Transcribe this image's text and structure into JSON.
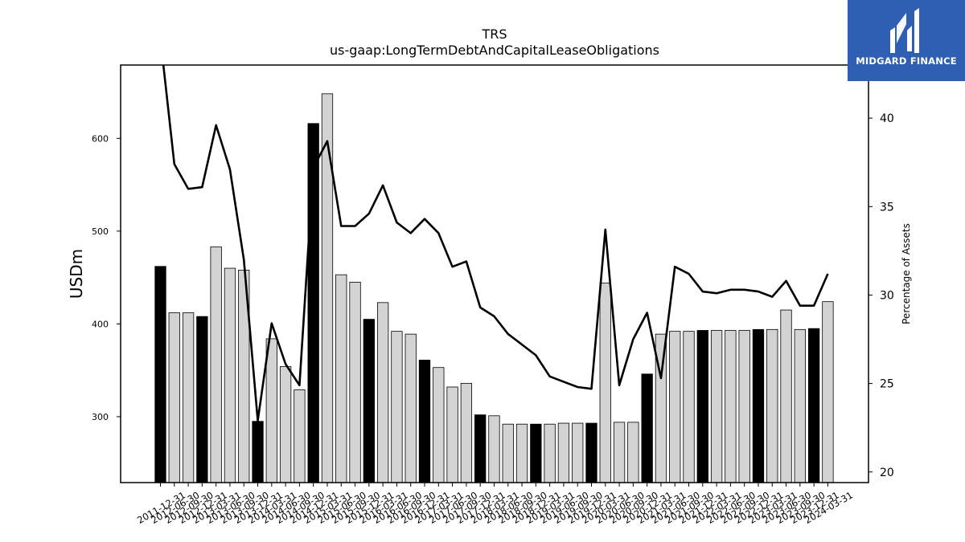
{
  "chart_data": {
    "type": "bar",
    "title": "TRS",
    "subtitle": "us-gaap:LongTermDebtAndCapitalLeaseObligations",
    "ylabel": "USDm",
    "y2label": "Percentage of Assets",
    "ylim": [
      229,
      679
    ],
    "y2lim": [
      19.4,
      43
    ],
    "yticks": [
      300,
      400,
      500,
      600
    ],
    "y2ticks": [
      20,
      25,
      30,
      35,
      40
    ],
    "grid": false,
    "categories": [
      "2011-12-31",
      "2012-06-30",
      "2012-09-30",
      "2012-12-31",
      "2013-03-31",
      "2013-06-30",
      "2013-09-30",
      "2013-12-31",
      "2014-03-31",
      "2014-06-30",
      "2014-09-30",
      "2014-12-31",
      "2015-03-31",
      "2015-06-30",
      "2015-09-30",
      "2015-12-31",
      "2016-03-31",
      "2016-06-30",
      "2016-09-30",
      "2016-12-31",
      "2017-03-31",
      "2017-06-30",
      "2017-09-30",
      "2017-12-31",
      "2018-03-31",
      "2018-06-30",
      "2018-09-30",
      "2018-12-31",
      "2019-03-31",
      "2019-06-30",
      "2019-09-30",
      "2019-12-31",
      "2020-03-31",
      "2020-06-30",
      "2020-09-30",
      "2020-12-31",
      "2021-03-31",
      "2021-06-30",
      "2021-09-30",
      "2021-12-31",
      "2022-03-31",
      "2022-06-30",
      "2022-09-30",
      "2022-12-31",
      "2023-03-31",
      "2023-06-30",
      "2023-09-30",
      "2023-12-31",
      "2024-03-31"
    ],
    "series": [
      {
        "type": "bar",
        "values": [
          462,
          412,
          412,
          408,
          483,
          460,
          458,
          295,
          384,
          354,
          329,
          616,
          648,
          453,
          445,
          405,
          423,
          392,
          389,
          361,
          353,
          332,
          336,
          302,
          301,
          292,
          292,
          292,
          292,
          293,
          293,
          293,
          444,
          294,
          294,
          346,
          389,
          392,
          392,
          393,
          393,
          393,
          393,
          394,
          394,
          415,
          394,
          395,
          424
        ],
        "fourth_quarter_color": "#000000",
        "other_color": "#d3d3d3"
      },
      {
        "type": "line",
        "axis": "right",
        "color": "#000000",
        "values": [
          44.5,
          37.4,
          36.0,
          36.1,
          39.6,
          37.1,
          32.0,
          22.9,
          28.4,
          26.1,
          24.9,
          37.2,
          38.7,
          33.9,
          33.9,
          34.6,
          36.2,
          34.1,
          33.5,
          34.3,
          33.5,
          31.6,
          31.9,
          29.3,
          28.8,
          27.8,
          27.2,
          26.6,
          25.4,
          25.1,
          24.8,
          24.7,
          33.7,
          24.9,
          27.5,
          29.0,
          25.3,
          31.6,
          31.2,
          30.2,
          30.1,
          30.3,
          30.3,
          30.2,
          29.9,
          30.8,
          29.4,
          29.4,
          31.2
        ]
      }
    ]
  },
  "logo": {
    "text": "MIDGARD FINANCE",
    "mark": "midgard-logo-mark",
    "background": "#2f5fb3"
  }
}
